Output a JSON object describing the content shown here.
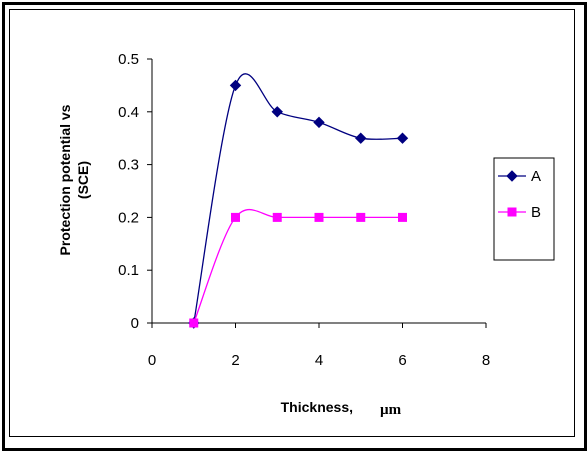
{
  "chart_data": {
    "type": "line",
    "title": "",
    "xlabel": "Thickness,",
    "xlabel_unit": "µm",
    "ylabel_line1": "Protection potential vs",
    "ylabel_line2": "(SCE)",
    "xlim": [
      0,
      8
    ],
    "ylim": [
      0,
      0.5
    ],
    "x_ticks": [
      "0",
      "2",
      "4",
      "6",
      "8"
    ],
    "y_ticks": [
      "0",
      "0.1",
      "0.2",
      "0.3",
      "0.4",
      "0.5"
    ],
    "grid": false,
    "smooth": true,
    "legend_position": "right",
    "series": [
      {
        "name": "A",
        "x": [
          1,
          2,
          3,
          4,
          5,
          6
        ],
        "values": [
          0,
          0.45,
          0.4,
          0.38,
          0.35,
          0.35
        ],
        "color": "#000080",
        "marker": "diamond"
      },
      {
        "name": "B",
        "x": [
          1,
          2,
          3,
          4,
          5,
          6
        ],
        "values": [
          0,
          0.2,
          0.2,
          0.2,
          0.2,
          0.2
        ],
        "color": "#FF00FF",
        "marker": "square"
      }
    ]
  }
}
